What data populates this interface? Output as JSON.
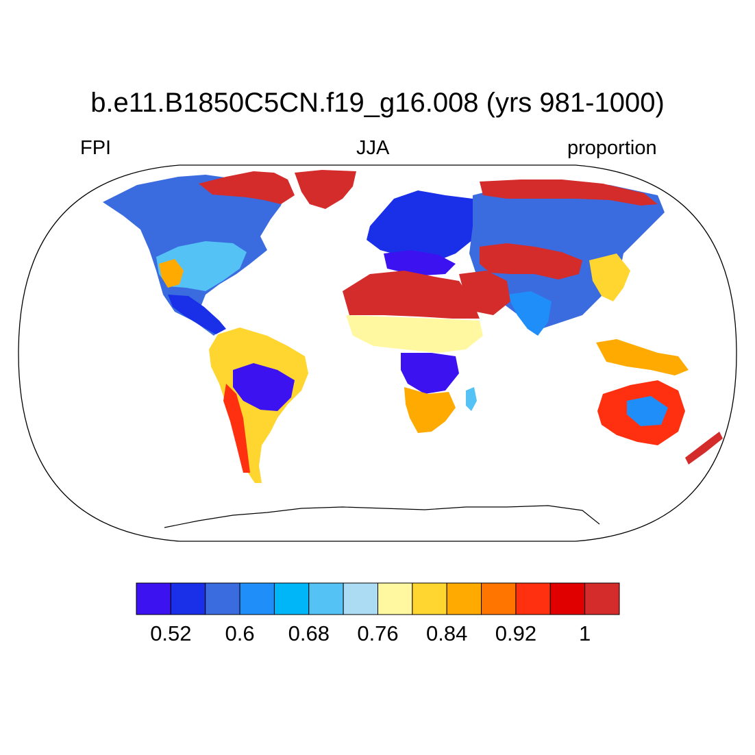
{
  "title": "b.e11.B1850C5CN.f19_g16.008 (yrs 981-1000)",
  "left_label": "FPI",
  "center_label": "JJA",
  "right_label": "proportion",
  "colorbar": {
    "colors": [
      "#3d12f0",
      "#1a30e8",
      "#3a6ce0",
      "#1f8ef8",
      "#00b6f8",
      "#55c2f5",
      "#acdcf3",
      "#fff8a0",
      "#ffd630",
      "#ffaa00",
      "#ff7500",
      "#ff3010",
      "#e00000",
      "#d42b2b"
    ],
    "tick_labels": [
      "0.52",
      "0.6",
      "0.68",
      "0.76",
      "0.84",
      "0.92",
      "1"
    ]
  },
  "map": {
    "projection": "Robinson",
    "ocean_color": "#ffffff",
    "coastline_color": "#000000"
  }
}
